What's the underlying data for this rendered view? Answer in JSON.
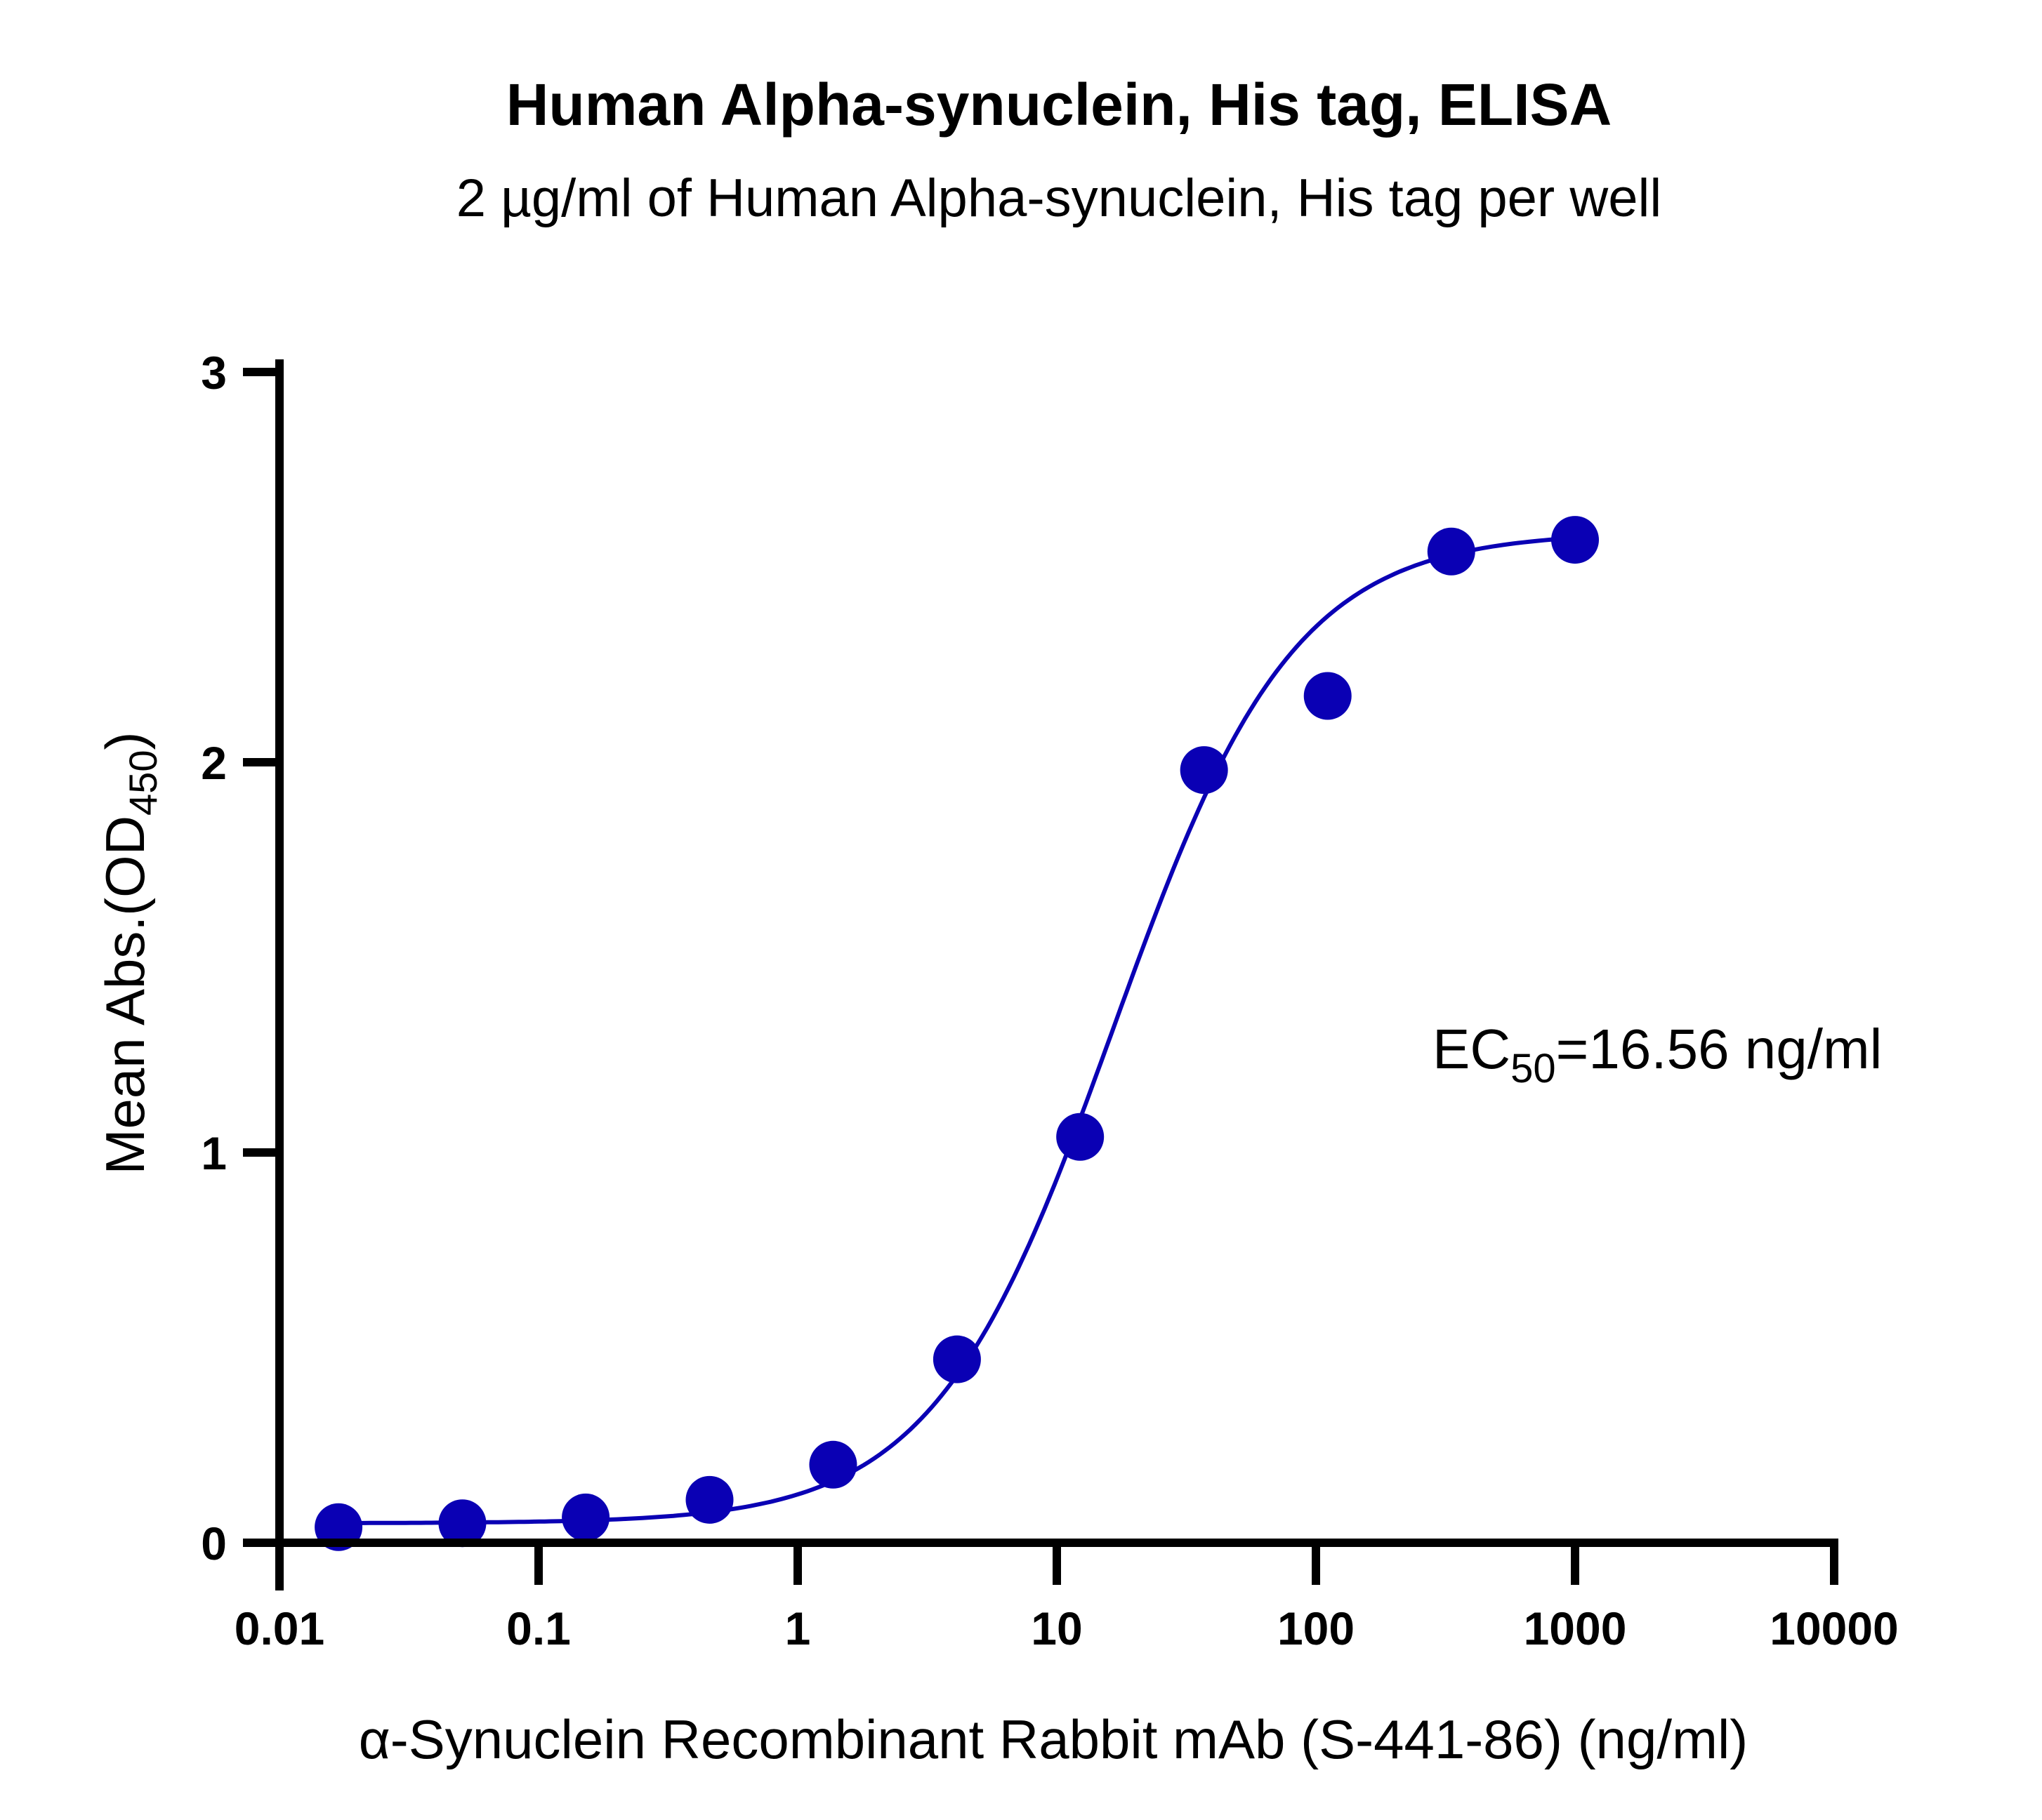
{
  "chart_data": {
    "type": "scatter",
    "title": "Human Alpha-synuclein, His tag, ELISA",
    "subtitle": "2 µg/ml of Human Alpha-synuclein, His tag per well",
    "xlabel": "α-Synuclein Recombinant Rabbit mAb (S-441-86) (ng/ml)",
    "ylabel": {
      "main": "Mean Abs.(OD",
      "sub": "450",
      "close": ")"
    },
    "x_scale": "log",
    "xlim": [
      0.01,
      10000
    ],
    "ylim": [
      0,
      3
    ],
    "x_ticks": [
      "0.01",
      "0.1",
      "1",
      "10",
      "100",
      "1000",
      "10000"
    ],
    "y_ticks": [
      "0",
      "1",
      "2",
      "3"
    ],
    "grid": false,
    "legend": "none",
    "color": "#0a00b4",
    "series": [
      {
        "x": [
          0.0169,
          0.0508,
          0.152,
          0.457,
          1.37,
          4.12,
          12.3,
          37.0,
          111,
          333,
          1000
        ],
        "y": [
          0.04,
          0.05,
          0.065,
          0.11,
          0.2,
          0.47,
          1.04,
          1.98,
          2.17,
          2.54,
          2.57
        ]
      }
    ],
    "fit_curve": {
      "bottom": 0.05,
      "top": 2.59,
      "ec50": 16.56,
      "hill": 1.25
    },
    "annotation": {
      "prefix": "EC",
      "sub": "50",
      "suffix": "=16.56 ng/ml"
    }
  }
}
